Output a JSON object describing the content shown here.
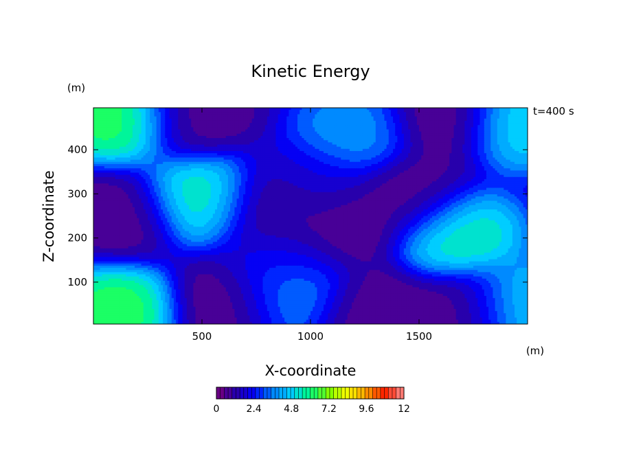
{
  "chart_data": {
    "type": "heatmap",
    "title": "Kinetic Energy",
    "xlabel": "X-coordinate",
    "ylabel": "Z-coordinate",
    "x_unit": "(m)",
    "y_unit": "(m)",
    "time_label": "t=400 s",
    "xlim": [
      0,
      2000
    ],
    "ylim": [
      5,
      495
    ],
    "x_ticks": [
      500,
      1000,
      1500
    ],
    "y_ticks": [
      100,
      200,
      300,
      400
    ],
    "colorbar": {
      "min": 0,
      "max": 12,
      "ticks": [
        "0",
        "2.4",
        "4.8",
        "7.2",
        "9.6",
        "12"
      ],
      "colormap": [
        "#7a007a",
        "#2a00a8",
        "#0000ff",
        "#0080ff",
        "#00d0ff",
        "#00ff80",
        "#80ff00",
        "#ffff00",
        "#ff9900",
        "#ff2200",
        "#ff9090"
      ]
    },
    "features": [
      {
        "x": 110,
        "z": 470,
        "value": 7.0
      },
      {
        "x": 110,
        "z": 35,
        "value": 7.0
      },
      {
        "x": 1960,
        "z": 460,
        "value": 5.5
      },
      {
        "x": 1960,
        "z": 40,
        "value": 5.5
      },
      {
        "x": 500,
        "z": 290,
        "value": 6.2
      },
      {
        "x": 1680,
        "z": 210,
        "value": 6.2
      },
      {
        "x": 1200,
        "z": 440,
        "value": 4.2
      },
      {
        "x": 900,
        "z": 70,
        "value": 4.2
      },
      {
        "x": 1000,
        "z": 320,
        "value": 2.2
      },
      {
        "x": 870,
        "z": 160,
        "value": 2.2
      },
      {
        "x": 130,
        "z": 250,
        "value": 0.4
      },
      {
        "x": 820,
        "z": 270,
        "value": 0.3
      },
      {
        "x": 1120,
        "z": 230,
        "value": 0.3
      },
      {
        "x": 1480,
        "z": 290,
        "value": 0.4
      },
      {
        "x": 620,
        "z": 50,
        "value": 0.3
      },
      {
        "x": 1620,
        "z": 470,
        "value": 0.3
      },
      {
        "x": 1720,
        "z": 30,
        "value": 0.3
      },
      {
        "x": 460,
        "z": 475,
        "value": 0.5
      },
      {
        "x": 1280,
        "z": 30,
        "value": 0.4
      }
    ]
  }
}
